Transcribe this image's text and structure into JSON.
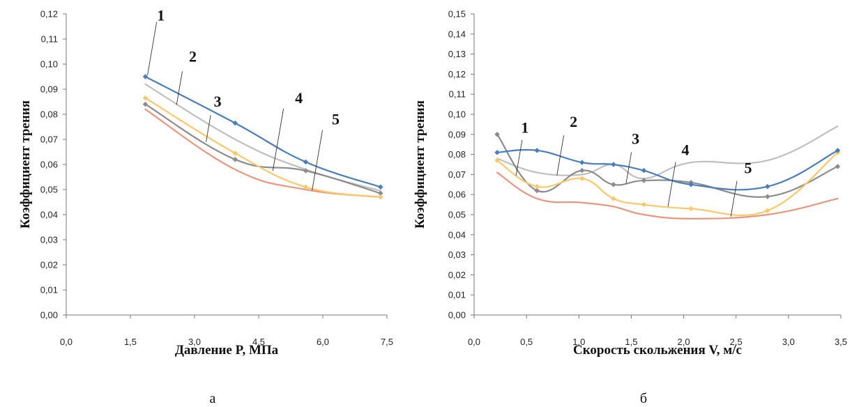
{
  "colors": {
    "s1": "#4a7ebb",
    "s2": "#bfbfbf",
    "s3": "#8c8c8c",
    "s4": "#f9c86a",
    "s5": "#e8967e"
  },
  "chart_data": [
    {
      "type": "line",
      "xlabel": "Давление P, МПа",
      "ylabel": "Коэффициент трения",
      "caption": "а",
      "xlim": [
        0,
        7.5
      ],
      "ylim": [
        0,
        0.12
      ],
      "xticks": [
        "0,0",
        "1,5",
        "3,0",
        "4,5",
        "6,0",
        "7,5"
      ],
      "yticks": [
        "0,00",
        "0,01",
        "0,02",
        "0,03",
        "0,04",
        "0,05",
        "0,06",
        "0,07",
        "0,08",
        "0,09",
        "0,10",
        "0,11",
        "0,12"
      ],
      "series": [
        {
          "name": "1",
          "color_key": "s1",
          "markers": true,
          "x": [
            1.85,
            3.95,
            5.6,
            7.35
          ],
          "y": [
            0.095,
            0.0765,
            0.061,
            0.051
          ]
        },
        {
          "name": "2",
          "color_key": "s2",
          "markers": false,
          "x": [
            1.85,
            3.95,
            5.6,
            7.35
          ],
          "y": [
            0.092,
            0.07,
            0.058,
            0.0495
          ]
        },
        {
          "name": "3",
          "color_key": "s3",
          "markers": true,
          "x": [
            1.85,
            3.95,
            5.6,
            7.35
          ],
          "y": [
            0.084,
            0.062,
            0.0575,
            0.0485
          ]
        },
        {
          "name": "4",
          "color_key": "s4",
          "markers": true,
          "x": [
            1.85,
            3.95,
            5.6,
            7.35
          ],
          "y": [
            0.0865,
            0.0645,
            0.051,
            0.047
          ]
        },
        {
          "name": "5",
          "color_key": "s5",
          "markers": false,
          "x": [
            1.85,
            3.95,
            5.6,
            7.35
          ],
          "y": [
            0.082,
            0.058,
            0.05,
            0.047
          ]
        }
      ],
      "labels": [
        {
          "text": "1",
          "series": "1",
          "x": 1.9,
          "y": 0.0955
        },
        {
          "text": "2",
          "series": "2",
          "x": 2.58,
          "y": 0.0838
        },
        {
          "text": "3",
          "series": "3",
          "x": 3.27,
          "y": 0.069
        },
        {
          "text": "4",
          "series": "4",
          "x": 4.83,
          "y": 0.0574
        },
        {
          "text": "5",
          "series": "5",
          "x": 5.75,
          "y": 0.0497
        }
      ]
    },
    {
      "type": "line",
      "xlabel": "Скорость скольжения V, м/с",
      "ylabel": "Коэффициент трения",
      "caption": "б",
      "xlim": [
        0,
        3.5
      ],
      "ylim": [
        0,
        0.15
      ],
      "xticks": [
        "0,0",
        "0,5",
        "1,0",
        "1,5",
        "2,0",
        "2,5",
        "3,0",
        "3,5"
      ],
      "yticks": [
        "0,00",
        "0,01",
        "0,02",
        "0,03",
        "0,04",
        "0,05",
        "0,06",
        "0,07",
        "0,08",
        "0,09",
        "0,10",
        "0,11",
        "0,12",
        "0,13",
        "0,14",
        "0,15"
      ],
      "series": [
        {
          "name": "1",
          "color_key": "s1",
          "markers": true,
          "x": [
            0.22,
            0.6,
            1.03,
            1.33,
            1.62,
            2.07,
            2.8,
            3.47
          ],
          "y": [
            0.081,
            0.082,
            0.076,
            0.075,
            0.072,
            0.065,
            0.064,
            0.082
          ]
        },
        {
          "name": "2",
          "color_key": "s2",
          "markers": false,
          "x": [
            0.22,
            0.6,
            1.03,
            1.33,
            1.62,
            2.07,
            2.8,
            3.47
          ],
          "y": [
            0.078,
            0.071,
            0.07,
            0.075,
            0.068,
            0.076,
            0.077,
            0.094
          ]
        },
        {
          "name": "3",
          "color_key": "s3",
          "markers": true,
          "x": [
            0.22,
            0.6,
            1.03,
            1.33,
            1.62,
            2.07,
            2.8,
            3.47
          ],
          "y": [
            0.09,
            0.062,
            0.072,
            0.065,
            0.067,
            0.066,
            0.059,
            0.074
          ]
        },
        {
          "name": "4",
          "color_key": "s4",
          "markers": true,
          "x": [
            0.22,
            0.6,
            1.03,
            1.33,
            1.62,
            2.07,
            2.8,
            3.47
          ],
          "y": [
            0.077,
            0.064,
            0.068,
            0.058,
            0.055,
            0.053,
            0.052,
            0.081
          ]
        },
        {
          "name": "5",
          "color_key": "s5",
          "markers": false,
          "x": [
            0.22,
            0.6,
            1.03,
            1.33,
            1.62,
            2.07,
            2.8,
            3.47
          ],
          "y": [
            0.071,
            0.058,
            0.056,
            0.054,
            0.05,
            0.048,
            0.05,
            0.058
          ]
        }
      ],
      "labels": [
        {
          "text": "1",
          "series": "1",
          "x": 0.4,
          "y": 0.0695
        },
        {
          "text": "2",
          "series": "2",
          "x": 0.79,
          "y": 0.0695
        },
        {
          "text": "3",
          "series": "3",
          "x": 1.45,
          "y": 0.0655
        },
        {
          "text": "4",
          "series": "4",
          "x": 1.85,
          "y": 0.054
        },
        {
          "text": "5",
          "series": "5",
          "x": 2.45,
          "y": 0.049
        }
      ]
    }
  ]
}
